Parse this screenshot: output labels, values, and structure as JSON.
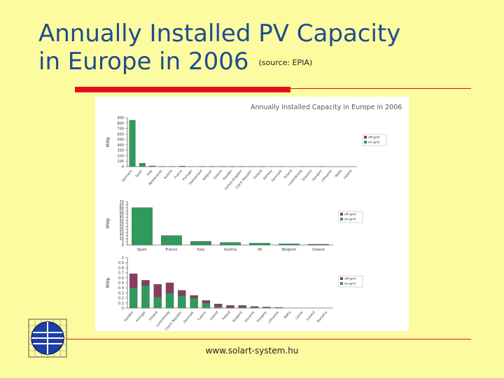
{
  "slide": {
    "title_line1": "Annually Installed PV Capacity",
    "title_line2": "in Europe in 2006",
    "source": "(source: EPIA)",
    "footer": "www.solart-system.hu"
  },
  "colors": {
    "background": "#fdfb9f",
    "title": "#1f4c8f",
    "accent_rule": "#e3101b",
    "on_grid": "#2f9a5b",
    "off_grid": "#8b3a62"
  },
  "chart_data": [
    {
      "type": "bar",
      "title": "Annually Installed Capacity in Europe in 2006",
      "ylabel": "MWp",
      "ylim": [
        0,
        900
      ],
      "yticks": [
        0,
        100,
        200,
        300,
        400,
        500,
        600,
        700,
        800,
        900
      ],
      "legend": "right",
      "stacked": true,
      "categories": [
        "Germany",
        "Spain",
        "Italy",
        "Netherlands",
        "Austria",
        "France",
        "Portugal",
        "Switzerland",
        "Belgium",
        "Greece",
        "Sweden",
        "United Kingdom",
        "Czech Republic",
        "Finland",
        "Norway",
        "Denmark",
        "Poland",
        "Luxembourg",
        "Slovenia",
        "Hungary",
        "Lithuania",
        "Malta",
        "Ireland"
      ],
      "series": [
        {
          "name": "off-grid",
          "values": [
            0.5,
            0.1,
            0.3,
            0,
            0,
            0.2,
            0,
            0,
            0,
            0.2,
            0.2,
            0,
            0,
            0.1,
            0.1,
            0,
            0,
            0,
            0,
            0,
            0,
            0,
            0
          ]
        },
        {
          "name": "on-grid",
          "values": [
            850,
            60,
            12,
            2,
            1.7,
            7.6,
            0.4,
            2.5,
            2,
            1,
            0.3,
            3,
            0.5,
            0.1,
            0,
            0.2,
            0,
            0.1,
            0.05,
            0.05,
            0,
            0,
            0
          ]
        }
      ]
    },
    {
      "type": "bar",
      "ylabel": "MWp",
      "ylim": [
        0,
        70
      ],
      "yticks": [
        0,
        5,
        10,
        15,
        20,
        25,
        30,
        35,
        40,
        45,
        50,
        55,
        60,
        65,
        70
      ],
      "legend": "right",
      "stacked": true,
      "categories": [
        "Spain",
        "France",
        "Italy",
        "Austria",
        "UK",
        "Belgium",
        "Greece"
      ],
      "series": [
        {
          "name": "off-grid",
          "values": [
            0.1,
            0.2,
            0.3,
            0,
            0,
            0,
            0.2
          ]
        },
        {
          "name": "on-grid",
          "values": [
            60,
            15,
            5.5,
            4,
            3,
            2,
            1
          ]
        }
      ]
    },
    {
      "type": "bar",
      "ylabel": "MWp",
      "ylim": [
        0,
        1
      ],
      "yticks": [
        0,
        0.1,
        0.2,
        0.3,
        0.4,
        0.5,
        0.6,
        0.7,
        0.8,
        0.9,
        1
      ],
      "legend": "right",
      "stacked": true,
      "categories": [
        "Sweden",
        "Portugal",
        "Finland",
        "Luxembourg",
        "Czech Republic",
        "Denmark",
        "Cyprus",
        "Ireland",
        "Poland",
        "Bulgaria",
        "Slovenia",
        "Hungary",
        "Lithuania",
        "Malta",
        "Latvia",
        "Iceland",
        "Romania"
      ],
      "series": [
        {
          "name": "off-grid",
          "values": [
            0.28,
            0.1,
            0.25,
            0.2,
            0.1,
            0.05,
            0.05,
            0.05,
            0.04,
            0.03,
            0.01,
            0.01,
            0.01,
            0,
            0,
            0,
            0
          ]
        },
        {
          "name": "on-grid",
          "values": [
            0.4,
            0.45,
            0.22,
            0.3,
            0.25,
            0.2,
            0.1,
            0.03,
            0.01,
            0.02,
            0.02,
            0.01,
            0,
            0,
            0,
            0,
            0
          ]
        }
      ]
    }
  ]
}
